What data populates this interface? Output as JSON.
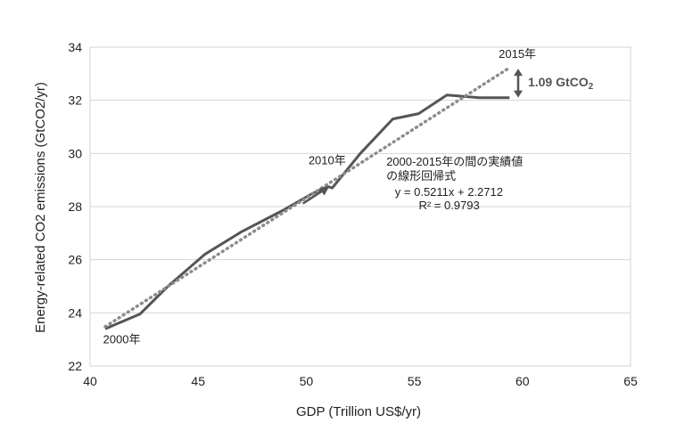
{
  "chart_data": {
    "type": "line",
    "title": "",
    "xlabel": "GDP (Trillion US$/yr)",
    "ylabel": "Energy-related CO2 emissions (GtCO2/yr)",
    "xlim": [
      40,
      65
    ],
    "ylim": [
      22,
      34
    ],
    "x_ticks": [
      "40",
      "45",
      "50",
      "55",
      "60",
      "65"
    ],
    "y_ticks": [
      "22",
      "24",
      "26",
      "28",
      "30",
      "32",
      "34"
    ],
    "grid": "horizontal",
    "legend": "none",
    "series": [
      {
        "style": "solid",
        "color": "#555555",
        "x": [
          40.7,
          42.3,
          43.6,
          45.3,
          47.0,
          48.9,
          50.3,
          51.0,
          51.2,
          52.5,
          54.0,
          55.2,
          56.5,
          58.0,
          59.4
        ],
        "y": [
          23.4,
          23.95,
          25.0,
          26.2,
          27.05,
          27.85,
          28.5,
          28.75,
          28.7,
          30.0,
          31.3,
          31.5,
          32.2,
          32.1,
          32.1
        ]
      },
      {
        "style": "dotted",
        "color": "#8c8c8c",
        "x": [
          40.7,
          59.4
        ],
        "y": [
          23.48,
          33.23
        ]
      }
    ],
    "annotations": {
      "start_label": "2000年",
      "mid_label": "2010年",
      "end_label": "2015年",
      "regression_label_line1": "2000-2015年の間の実績値",
      "regression_label_line2": "の線形回帰式",
      "equation": "y = 0.5211x + 2.2712",
      "r_squared": "R² = 0.9793",
      "gap_label": "1.09 GtCO",
      "gap_label_sub": "2"
    },
    "arrow_x": 51.0,
    "gap_x": 59.8,
    "gap_y": [
      32.1,
      33.19
    ]
  }
}
